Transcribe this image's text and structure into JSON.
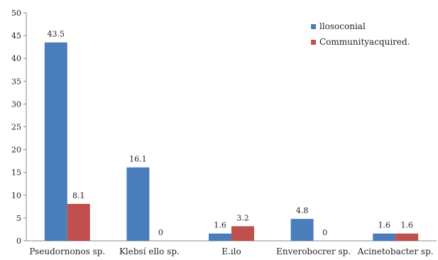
{
  "chart_data": {
    "type": "bar",
    "categories": [
      "Pseudornonos sp.",
      "Klebsí ello sp.",
      "E.ılo",
      "Enverobocrer sp.",
      "Acinetobacter sp."
    ],
    "series": [
      {
        "name": "llosoconial",
        "values": [
          43.5,
          16.1,
          1.6,
          4.8,
          1.6
        ],
        "labels": [
          "43.5",
          "16.1",
          "1.6",
          "4.8",
          "1.6"
        ]
      },
      {
        "name": "Communityacquired.",
        "values": [
          8.1,
          0,
          3.2,
          0,
          1.6
        ],
        "labels": [
          "8.1",
          "0",
          "3.2",
          "0",
          "1.6"
        ]
      }
    ],
    "ylim": [
      0,
      50
    ],
    "yticks": [
      "0",
      "5",
      "10",
      "15",
      "20",
      "25",
      "30",
      "35",
      "40",
      "45",
      "50"
    ],
    "colors": [
      "#4a7ebb",
      "#c0504d"
    ],
    "grid": false,
    "legend_position": "top-right",
    "title": "",
    "xlabel": "",
    "ylabel": ""
  }
}
